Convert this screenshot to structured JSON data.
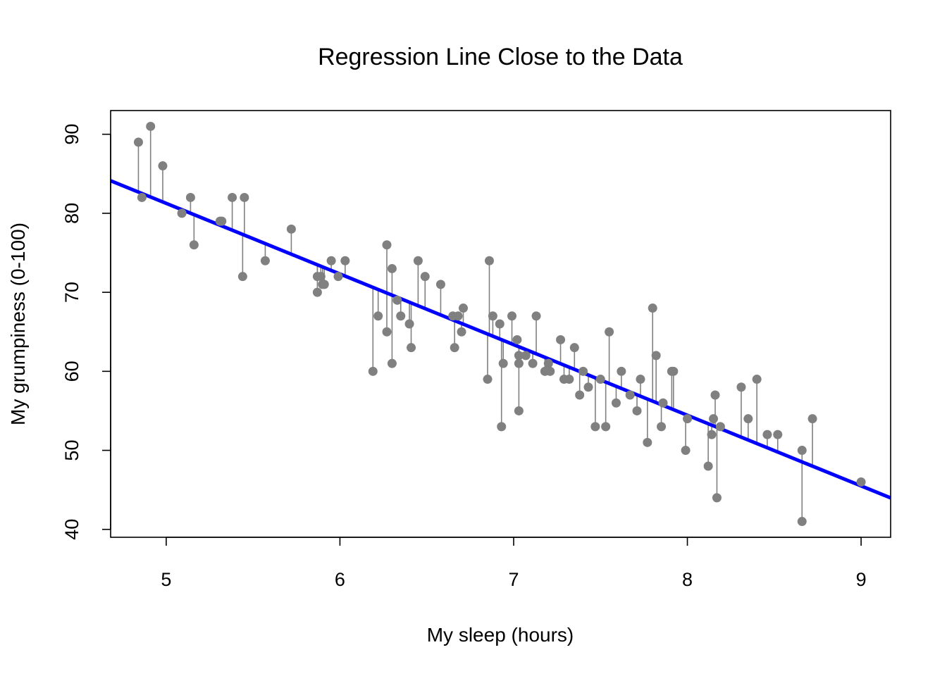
{
  "chart_data": {
    "type": "scatter",
    "title": "Regression Line Close to the Data",
    "xlabel": "My sleep (hours)",
    "ylabel": "My grumpiness (0-100)",
    "xlim": [
      4.68,
      9.17
    ],
    "ylim": [
      39,
      93
    ],
    "x_ticks": [
      5,
      6,
      7,
      8,
      9
    ],
    "y_ticks": [
      40,
      50,
      60,
      70,
      80,
      90
    ],
    "grid": false,
    "regression": {
      "intercept": 125.96,
      "slope": -8.94,
      "color": "#0000ff"
    },
    "point_color": "#808080",
    "residual_color": "#808080",
    "points": [
      {
        "x": 4.84,
        "y": 89
      },
      {
        "x": 4.86,
        "y": 82
      },
      {
        "x": 4.91,
        "y": 91
      },
      {
        "x": 4.98,
        "y": 86
      },
      {
        "x": 5.09,
        "y": 80
      },
      {
        "x": 5.14,
        "y": 82
      },
      {
        "x": 5.16,
        "y": 76
      },
      {
        "x": 5.31,
        "y": 79
      },
      {
        "x": 5.32,
        "y": 79
      },
      {
        "x": 5.38,
        "y": 82
      },
      {
        "x": 5.44,
        "y": 72
      },
      {
        "x": 5.45,
        "y": 82
      },
      {
        "x": 5.57,
        "y": 74
      },
      {
        "x": 5.72,
        "y": 78
      },
      {
        "x": 5.87,
        "y": 72
      },
      {
        "x": 5.87,
        "y": 70
      },
      {
        "x": 5.89,
        "y": 72
      },
      {
        "x": 5.9,
        "y": 71
      },
      {
        "x": 5.91,
        "y": 71
      },
      {
        "x": 5.95,
        "y": 74
      },
      {
        "x": 5.99,
        "y": 72
      },
      {
        "x": 6.03,
        "y": 74
      },
      {
        "x": 6.19,
        "y": 60
      },
      {
        "x": 6.22,
        "y": 67
      },
      {
        "x": 6.27,
        "y": 65
      },
      {
        "x": 6.27,
        "y": 76
      },
      {
        "x": 6.3,
        "y": 73
      },
      {
        "x": 6.3,
        "y": 61
      },
      {
        "x": 6.33,
        "y": 69
      },
      {
        "x": 6.35,
        "y": 67
      },
      {
        "x": 6.4,
        "y": 66
      },
      {
        "x": 6.41,
        "y": 63
      },
      {
        "x": 6.45,
        "y": 74
      },
      {
        "x": 6.49,
        "y": 72
      },
      {
        "x": 6.58,
        "y": 71
      },
      {
        "x": 6.65,
        "y": 67
      },
      {
        "x": 6.66,
        "y": 63
      },
      {
        "x": 6.68,
        "y": 67
      },
      {
        "x": 6.7,
        "y": 65
      },
      {
        "x": 6.71,
        "y": 68
      },
      {
        "x": 6.85,
        "y": 59
      },
      {
        "x": 6.86,
        "y": 74
      },
      {
        "x": 6.88,
        "y": 67
      },
      {
        "x": 6.92,
        "y": 66
      },
      {
        "x": 6.93,
        "y": 53
      },
      {
        "x": 6.94,
        "y": 61
      },
      {
        "x": 6.99,
        "y": 67
      },
      {
        "x": 7.02,
        "y": 64
      },
      {
        "x": 7.03,
        "y": 55
      },
      {
        "x": 7.03,
        "y": 61
      },
      {
        "x": 7.03,
        "y": 62
      },
      {
        "x": 7.07,
        "y": 62
      },
      {
        "x": 7.11,
        "y": 61
      },
      {
        "x": 7.13,
        "y": 67
      },
      {
        "x": 7.18,
        "y": 60
      },
      {
        "x": 7.2,
        "y": 61
      },
      {
        "x": 7.21,
        "y": 60
      },
      {
        "x": 7.27,
        "y": 64
      },
      {
        "x": 7.29,
        "y": 59
      },
      {
        "x": 7.32,
        "y": 59
      },
      {
        "x": 7.35,
        "y": 63
      },
      {
        "x": 7.38,
        "y": 57
      },
      {
        "x": 7.4,
        "y": 60
      },
      {
        "x": 7.43,
        "y": 58
      },
      {
        "x": 7.47,
        "y": 53
      },
      {
        "x": 7.5,
        "y": 59
      },
      {
        "x": 7.53,
        "y": 53
      },
      {
        "x": 7.55,
        "y": 65
      },
      {
        "x": 7.59,
        "y": 56
      },
      {
        "x": 7.62,
        "y": 60
      },
      {
        "x": 7.67,
        "y": 57
      },
      {
        "x": 7.71,
        "y": 55
      },
      {
        "x": 7.73,
        "y": 59
      },
      {
        "x": 7.77,
        "y": 51
      },
      {
        "x": 7.8,
        "y": 68
      },
      {
        "x": 7.82,
        "y": 62
      },
      {
        "x": 7.85,
        "y": 53
      },
      {
        "x": 7.86,
        "y": 56
      },
      {
        "x": 7.91,
        "y": 60
      },
      {
        "x": 7.92,
        "y": 60
      },
      {
        "x": 7.99,
        "y": 50
      },
      {
        "x": 8.0,
        "y": 54
      },
      {
        "x": 8.12,
        "y": 48
      },
      {
        "x": 8.14,
        "y": 52
      },
      {
        "x": 8.15,
        "y": 54
      },
      {
        "x": 8.16,
        "y": 57
      },
      {
        "x": 8.17,
        "y": 44
      },
      {
        "x": 8.19,
        "y": 53
      },
      {
        "x": 8.31,
        "y": 58
      },
      {
        "x": 8.35,
        "y": 54
      },
      {
        "x": 8.4,
        "y": 59
      },
      {
        "x": 8.46,
        "y": 52
      },
      {
        "x": 8.52,
        "y": 52
      },
      {
        "x": 8.66,
        "y": 41
      },
      {
        "x": 8.66,
        "y": 50
      },
      {
        "x": 8.72,
        "y": 54
      },
      {
        "x": 9.0,
        "y": 46
      }
    ]
  }
}
